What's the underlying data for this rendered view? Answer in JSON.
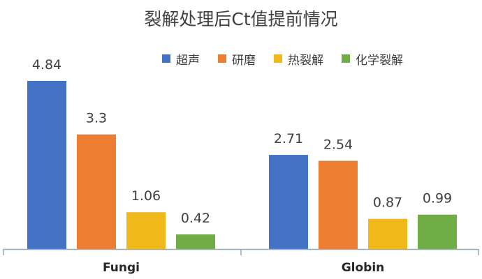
{
  "chart_data": {
    "type": "bar",
    "title": "裂解处理后Ct值提前情况",
    "categories": [
      "Fungi",
      "Globin"
    ],
    "series": [
      {
        "name": "超声",
        "values": [
          4.84,
          2.71
        ]
      },
      {
        "name": "研磨",
        "values": [
          3.3,
          2.54
        ]
      },
      {
        "name": "热裂解",
        "values": [
          1.06,
          0.87
        ]
      },
      {
        "name": "化学裂解",
        "values": [
          0.42,
          0.99
        ]
      }
    ],
    "xlabel": "",
    "ylabel": "",
    "ylim": [
      0,
      5
    ],
    "grid": false,
    "legend_position": "top-right",
    "colors": [
      "#4472C4",
      "#ED7D31",
      "#F0B91A",
      "#70AD47"
    ]
  }
}
